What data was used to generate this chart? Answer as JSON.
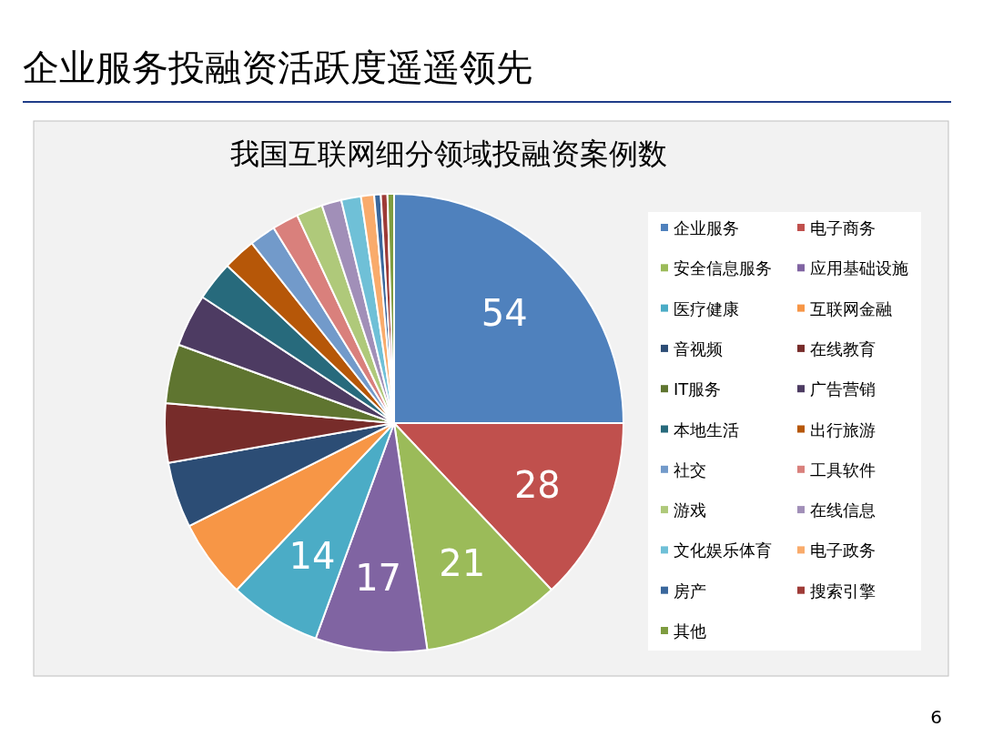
{
  "chart_data": {
    "type": "pie",
    "title": "企业服务投融资活跃度遥遥领先",
    "subtitle": "我国互联网细分领域投融资案例数",
    "categories": [
      "企业服务",
      "电子商务",
      "安全信息服务",
      "应用基础设施",
      "医疗健康",
      "互联网金融",
      "音视频",
      "在线教育",
      "IT服务",
      "广告营销",
      "本地生活",
      "出行旅游",
      "社交",
      "工具软件",
      "游戏",
      "在线信息",
      "文化娱乐体育",
      "电子政务",
      "房产",
      "搜索引擎",
      "其他"
    ],
    "values": [
      54,
      28,
      21,
      17,
      14,
      12,
      10,
      9,
      9,
      8,
      6,
      5,
      4,
      4,
      4,
      3,
      3,
      2,
      1,
      1,
      1
    ],
    "value_labels": [
      "54",
      "28",
      "21",
      "17",
      "14",
      null,
      null,
      null,
      null,
      null,
      null,
      null,
      null,
      null,
      null,
      null,
      null,
      null,
      null,
      null,
      null
    ],
    "colors": [
      "#4f81bd",
      "#c0504d",
      "#9bbb59",
      "#8064a2",
      "#4bacc6",
      "#f79646",
      "#2c4d75",
      "#772c2a",
      "#5f7530",
      "#4d3b62",
      "#276a7c",
      "#b65708",
      "#729aca",
      "#d9807c",
      "#afc97a",
      "#a18fb8",
      "#6fc0d7",
      "#f9ab6b",
      "#3a679c",
      "#9e3b37",
      "#7e9c40"
    ],
    "legend": "right",
    "annotations": [
      "6"
    ]
  }
}
